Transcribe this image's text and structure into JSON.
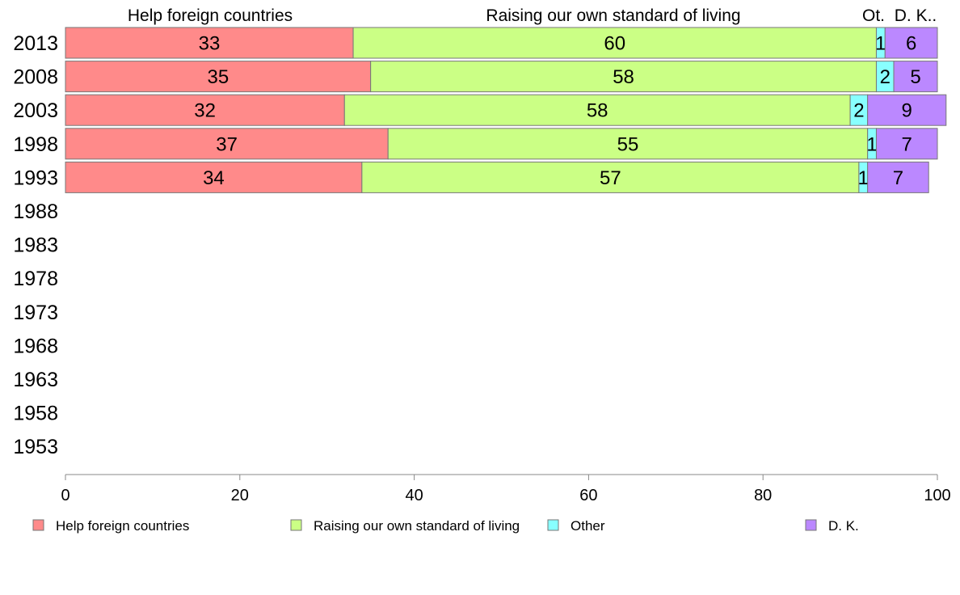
{
  "chart_data": {
    "type": "bar",
    "orientation": "horizontal",
    "stacked": true,
    "categories": [
      "2013",
      "2008",
      "2003",
      "1998",
      "1993",
      "1988",
      "1983",
      "1978",
      "1973",
      "1968",
      "1963",
      "1958",
      "1953"
    ],
    "series": [
      {
        "name": "Help foreign countries",
        "color": "#ff8a8a",
        "values": [
          33,
          35,
          32,
          37,
          34,
          null,
          null,
          null,
          null,
          null,
          null,
          null,
          null
        ]
      },
      {
        "name": "Raising our own standard of living",
        "color": "#cbff85",
        "values": [
          60,
          58,
          58,
          55,
          57,
          null,
          null,
          null,
          null,
          null,
          null,
          null,
          null
        ]
      },
      {
        "name": "Other",
        "color": "#88ffff",
        "values": [
          1,
          2,
          2,
          1,
          1,
          null,
          null,
          null,
          null,
          null,
          null,
          null,
          null
        ]
      },
      {
        "name": "D. K.",
        "color": "#bb88ff",
        "values": [
          6,
          5,
          9,
          7,
          7,
          null,
          null,
          null,
          null,
          null,
          null,
          null,
          null
        ]
      }
    ],
    "headers": [
      "Help foreign countries",
      "Raising our own standard of living",
      "Ot.",
      "D. K.."
    ],
    "xlim": [
      0,
      100
    ],
    "xticks": [
      0,
      20,
      40,
      60,
      80,
      100
    ],
    "grid": false,
    "legend_position": "bottom"
  }
}
